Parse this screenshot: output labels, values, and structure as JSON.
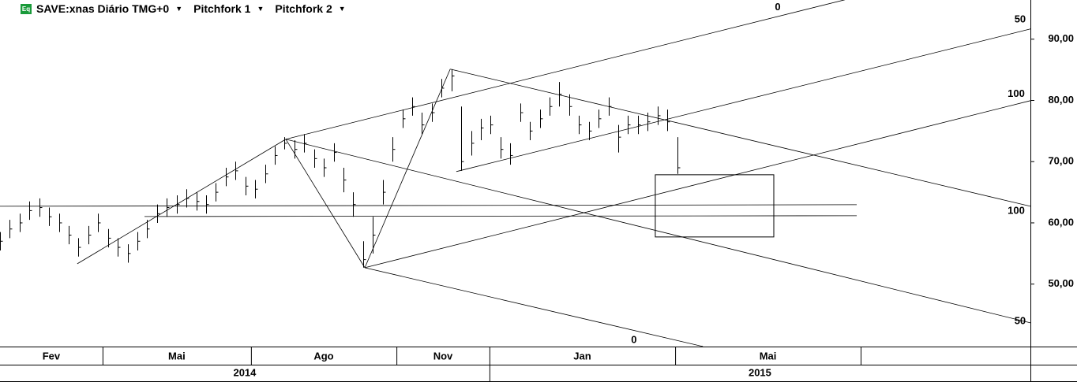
{
  "chart_data": {
    "type": "ohlc",
    "icon": "Eq",
    "title": "SAVE:xnas Diário TMG+0",
    "studies": [
      "Pitchfork 1",
      "Pitchfork 2"
    ],
    "color": "#000000",
    "xlim": [
      0,
      420
    ],
    "ylim": [
      39.8,
      96.4
    ],
    "yticks": [
      {
        "value": 50,
        "label": "50,00"
      },
      {
        "value": 60,
        "label": "60,00"
      },
      {
        "value": 70,
        "label": "70,00"
      },
      {
        "value": 80,
        "label": "80,00"
      },
      {
        "value": 90,
        "label": "90,00"
      }
    ],
    "x": [
      0,
      4,
      8,
      12,
      16,
      20,
      24,
      28,
      32,
      36,
      40,
      44,
      48,
      52,
      56,
      60,
      64,
      68,
      72,
      76,
      80,
      84,
      88,
      92,
      96,
      100,
      104,
      108,
      112,
      116,
      120,
      124,
      128,
      132,
      136,
      140,
      144,
      148,
      152,
      156,
      160,
      164,
      168,
      172,
      176,
      180,
      184,
      188,
      192,
      196,
      200,
      204,
      208,
      212,
      216,
      220,
      224,
      228,
      232,
      236,
      240,
      244,
      248,
      252,
      256,
      260,
      264,
      268,
      272,
      276
    ],
    "high": [
      58.5,
      60.5,
      61.5,
      63.5,
      64,
      62.5,
      61.5,
      59.5,
      57.5,
      59.5,
      61.5,
      59,
      57.5,
      56.5,
      58.5,
      60.5,
      63,
      64,
      64.5,
      65.5,
      65,
      64.5,
      66.5,
      69,
      70,
      67.5,
      67,
      69.5,
      72.5,
      74,
      73.5,
      74.5,
      72,
      70.5,
      73,
      69,
      65,
      57,
      61,
      67,
      74,
      78.5,
      80.5,
      78,
      79.5,
      83.5,
      85.1,
      79,
      75,
      77,
      77.5,
      74,
      73,
      79.5,
      76.5,
      78.5,
      80.5,
      83,
      81,
      77.5,
      76.5,
      78.5,
      80.5,
      76,
      77.5,
      77.5,
      78,
      79,
      78.5,
      74
    ],
    "low": [
      55.5,
      57.5,
      58.5,
      60.5,
      61,
      59.5,
      58.5,
      56.5,
      54.5,
      56.5,
      58.5,
      56,
      54.5,
      53.5,
      55.5,
      57.5,
      60,
      61,
      61.5,
      62.5,
      62,
      61.5,
      63.5,
      66,
      67,
      64.5,
      64,
      66.5,
      69.5,
      72,
      70.5,
      71.5,
      69,
      67.5,
      70,
      65,
      61,
      52.7,
      55,
      63,
      70,
      75.5,
      77.5,
      74.5,
      76.5,
      80.5,
      81.5,
      68.5,
      71,
      73.5,
      74.5,
      70.5,
      69.5,
      76.5,
      73.5,
      75.5,
      77.5,
      79,
      77.5,
      74.5,
      73.5,
      75.5,
      77.5,
      71.5,
      74.5,
      74.5,
      75,
      76,
      75,
      68
    ],
    "close": [
      57,
      59,
      60,
      62,
      62.5,
      61,
      60,
      58,
      56,
      58,
      60,
      57.5,
      56,
      55,
      57,
      59,
      61.5,
      62.5,
      63,
      64,
      63.5,
      63,
      65,
      67.5,
      68.5,
      66,
      65.5,
      68,
      71,
      73,
      72,
      73,
      70.5,
      69,
      71.5,
      67,
      63,
      54,
      58,
      65,
      72,
      77,
      79,
      76,
      78,
      82,
      84,
      70,
      73,
      75.5,
      76,
      72,
      71,
      78,
      75,
      77,
      79,
      81,
      79,
      76,
      75,
      77,
      79,
      74,
      76,
      76,
      76.5,
      77.5,
      76.5,
      69
    ],
    "lines": [
      {
        "x": [
          31.5,
          116.5
        ],
        "y": [
          53.32,
          73.66
        ]
      },
      {
        "x": [
          116.5,
          344.4
        ],
        "y": [
          73.66,
          96.44
        ]
      },
      {
        "x": [
          116.5,
          148.7
        ],
        "y": [
          73.66,
          52.68
        ]
      },
      {
        "x": [
          148.7,
          183.5
        ],
        "y": [
          52.68,
          85.11
        ]
      },
      {
        "x": [
          183.5,
          420
        ],
        "y": [
          85.11,
          62.71
        ]
      },
      {
        "x": [
          116.5,
          420
        ],
        "y": [
          73.66,
          43.67
        ]
      },
      {
        "x": [
          148.7,
          286.5
        ],
        "y": [
          52.68,
          39.81
        ]
      },
      {
        "x": [
          186,
          420
        ],
        "y": [
          68.38,
          91.67
        ]
      },
      {
        "x": [
          148.7,
          420
        ],
        "y": [
          52.68,
          79.96
        ]
      },
      {
        "x": [
          0,
          349.2
        ],
        "y": [
          62.71,
          62.97
        ]
      },
      {
        "x": [
          58.9,
          349.2
        ],
        "y": [
          61.04,
          61.17
        ]
      }
    ],
    "box": {
      "x": [
        267.1,
        315.4
      ],
      "y": [
        57.7,
        67.86
      ]
    },
    "level_labels": [
      {
        "text": "0",
        "x": 317,
        "y": 95.2
      },
      {
        "text": "50",
        "x": 415.8,
        "y": 93.2
      },
      {
        "text": "100",
        "x": 414.2,
        "y": 81.0
      },
      {
        "text": "100",
        "x": 414.2,
        "y": 61.9
      },
      {
        "text": "50",
        "x": 415.8,
        "y": 43.9
      },
      {
        "text": "0",
        "x": 258.4,
        "y": 40.8
      }
    ],
    "months": [
      {
        "label": "Fev",
        "start": 0,
        "end": 41.8
      },
      {
        "label": "Mai",
        "start": 41.8,
        "end": 102.3
      },
      {
        "label": "Ago",
        "start": 102.3,
        "end": 161.6
      },
      {
        "label": "Nov",
        "start": 161.6,
        "end": 199.5
      },
      {
        "label": "Jan",
        "start": 199.5,
        "end": 275.2
      },
      {
        "label": "Mai",
        "start": 275.2,
        "end": 350.8
      }
    ],
    "years": [
      {
        "label": "2014",
        "start": 0,
        "end": 199.5
      },
      {
        "label": "2015",
        "start": 199.5,
        "end": 420
      }
    ]
  }
}
